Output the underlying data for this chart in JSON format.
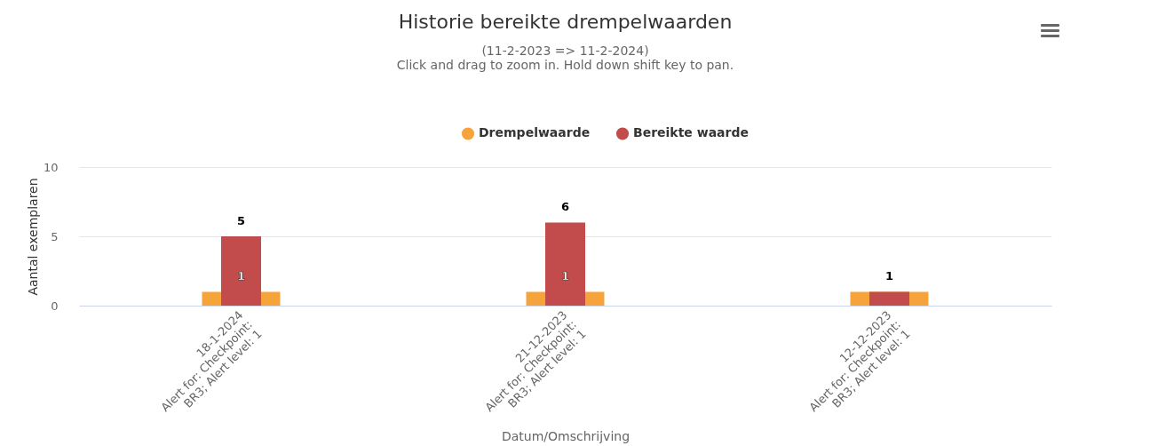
{
  "chart_data": {
    "type": "bar",
    "title": "Historie bereikte drempelwaarden",
    "subtitle": "(11-2-2023 => 11-2-2024)\nClick and drag to zoom in. Hold down shift key to pan.",
    "xlabel": "Datum/Omschrijving",
    "ylabel": "Aantal exemplaren",
    "categories": [
      "18-1-2024\nAlert for: Checkpoint:\nBR3; Alert level: 1",
      "21-12-2023\nAlert for: Checkpoint:\nBR3; Alert level: 1",
      "12-12-2023\nAlert for: Checkpoint:\nBR3; Alert level: 1"
    ],
    "series": [
      {
        "name": "Drempelwaarde",
        "color": "#f7a33c",
        "values": [
          1,
          1,
          1
        ],
        "value_labels": [
          "1",
          "1",
          null
        ]
      },
      {
        "name": "Bereikte waarde",
        "color": "#c24b4b",
        "values": [
          5,
          6,
          1
        ],
        "value_labels": [
          "5",
          "6",
          "1"
        ]
      }
    ],
    "ylim": [
      0,
      10
    ],
    "yticks": [
      0,
      5,
      10
    ],
    "grid": "y",
    "legend": "top"
  }
}
